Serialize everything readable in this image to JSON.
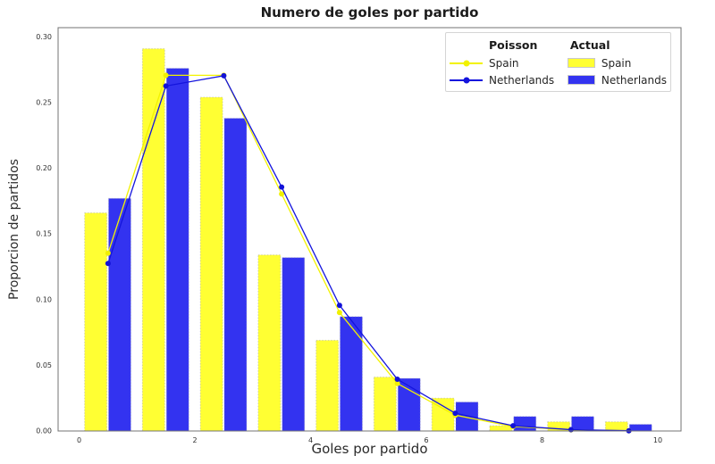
{
  "title": "Numero de goles por partido",
  "axes": {
    "xlabel": "Goles por partido",
    "ylabel": "Proporcion de partidos",
    "x_tick_labels": [
      "0",
      "2",
      "4",
      "6",
      "8",
      "10"
    ],
    "y_tick_labels": [
      "0.00",
      "0.05",
      "0.10",
      "0.15",
      "0.20",
      "0.25",
      "0.30"
    ]
  },
  "legend": {
    "columns": [
      {
        "header": "Poisson",
        "items": [
          {
            "label": "Spain",
            "type": "line",
            "color": "#f2f200"
          },
          {
            "label": "Netherlands",
            "type": "line",
            "color": "#1414dd"
          }
        ]
      },
      {
        "header": "Actual",
        "items": [
          {
            "label": "Spain",
            "type": "patch",
            "color": "#ffff33"
          },
          {
            "label": "Netherlands",
            "type": "patch",
            "color": "#3333f0"
          }
        ]
      }
    ]
  },
  "chart_data": {
    "type": "bar",
    "title": "Numero de goles por partido",
    "xlabel": "Goles por partido",
    "ylabel": "Proporcion de partidos",
    "categories": [
      0,
      1,
      2,
      3,
      4,
      5,
      6,
      7,
      8,
      9
    ],
    "xlim": [
      -0.36,
      10.4
    ],
    "ylim": [
      0,
      0.307
    ],
    "x_ticks": [
      0,
      2,
      4,
      6,
      8,
      10
    ],
    "y_ticks": [
      0,
      0.05,
      0.1,
      0.15,
      0.2,
      0.25,
      0.3
    ],
    "grid": false,
    "legend_position": "upper right",
    "bar_series": [
      {
        "name": "Spain (Actual)",
        "color": "#ffff33",
        "values": [
          0.166,
          0.291,
          0.254,
          0.134,
          0.069,
          0.041,
          0.025,
          0.004,
          0.007,
          0.007
        ]
      },
      {
        "name": "Netherlands (Actual)",
        "color": "#3333f0",
        "values": [
          0.177,
          0.276,
          0.238,
          0.132,
          0.087,
          0.04,
          0.022,
          0.011,
          0.011,
          0.005
        ]
      }
    ],
    "line_series": [
      {
        "name": "Spain (Poisson)",
        "color": "#f2f200",
        "marker_color": "#f0f000",
        "x": [
          0.5,
          1.5,
          2.5,
          3.5,
          4.5,
          5.5,
          6.5,
          7.5,
          8.5,
          9.5
        ],
        "values": [
          0.1353,
          0.2707,
          0.2707,
          0.1804,
          0.0902,
          0.0361,
          0.012,
          0.0034,
          0.0009,
          0.0002
        ]
      },
      {
        "name": "Netherlands (Poisson)",
        "color": "#1414dd",
        "marker_color": "#1212d8",
        "x": [
          0.5,
          1.5,
          2.5,
          3.5,
          4.5,
          5.5,
          6.5,
          7.5,
          8.5,
          9.5
        ],
        "values": [
          0.1275,
          0.2626,
          0.2704,
          0.1857,
          0.0956,
          0.0394,
          0.0135,
          0.004,
          0.001,
          0.0002
        ]
      }
    ]
  }
}
